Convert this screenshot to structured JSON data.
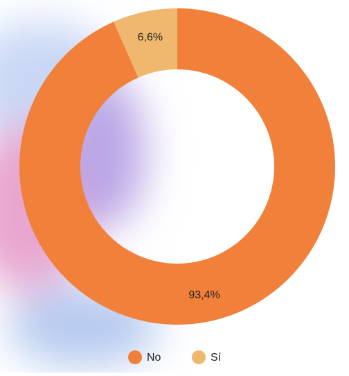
{
  "chart_data": {
    "type": "donut",
    "categories": [
      "No",
      "Sí"
    ],
    "values": [
      93.4,
      6.6
    ],
    "value_labels": [
      "93,4%",
      "6,6%"
    ],
    "colors": [
      "#f0803a",
      "#f0b86e"
    ],
    "legend": "bottom"
  }
}
